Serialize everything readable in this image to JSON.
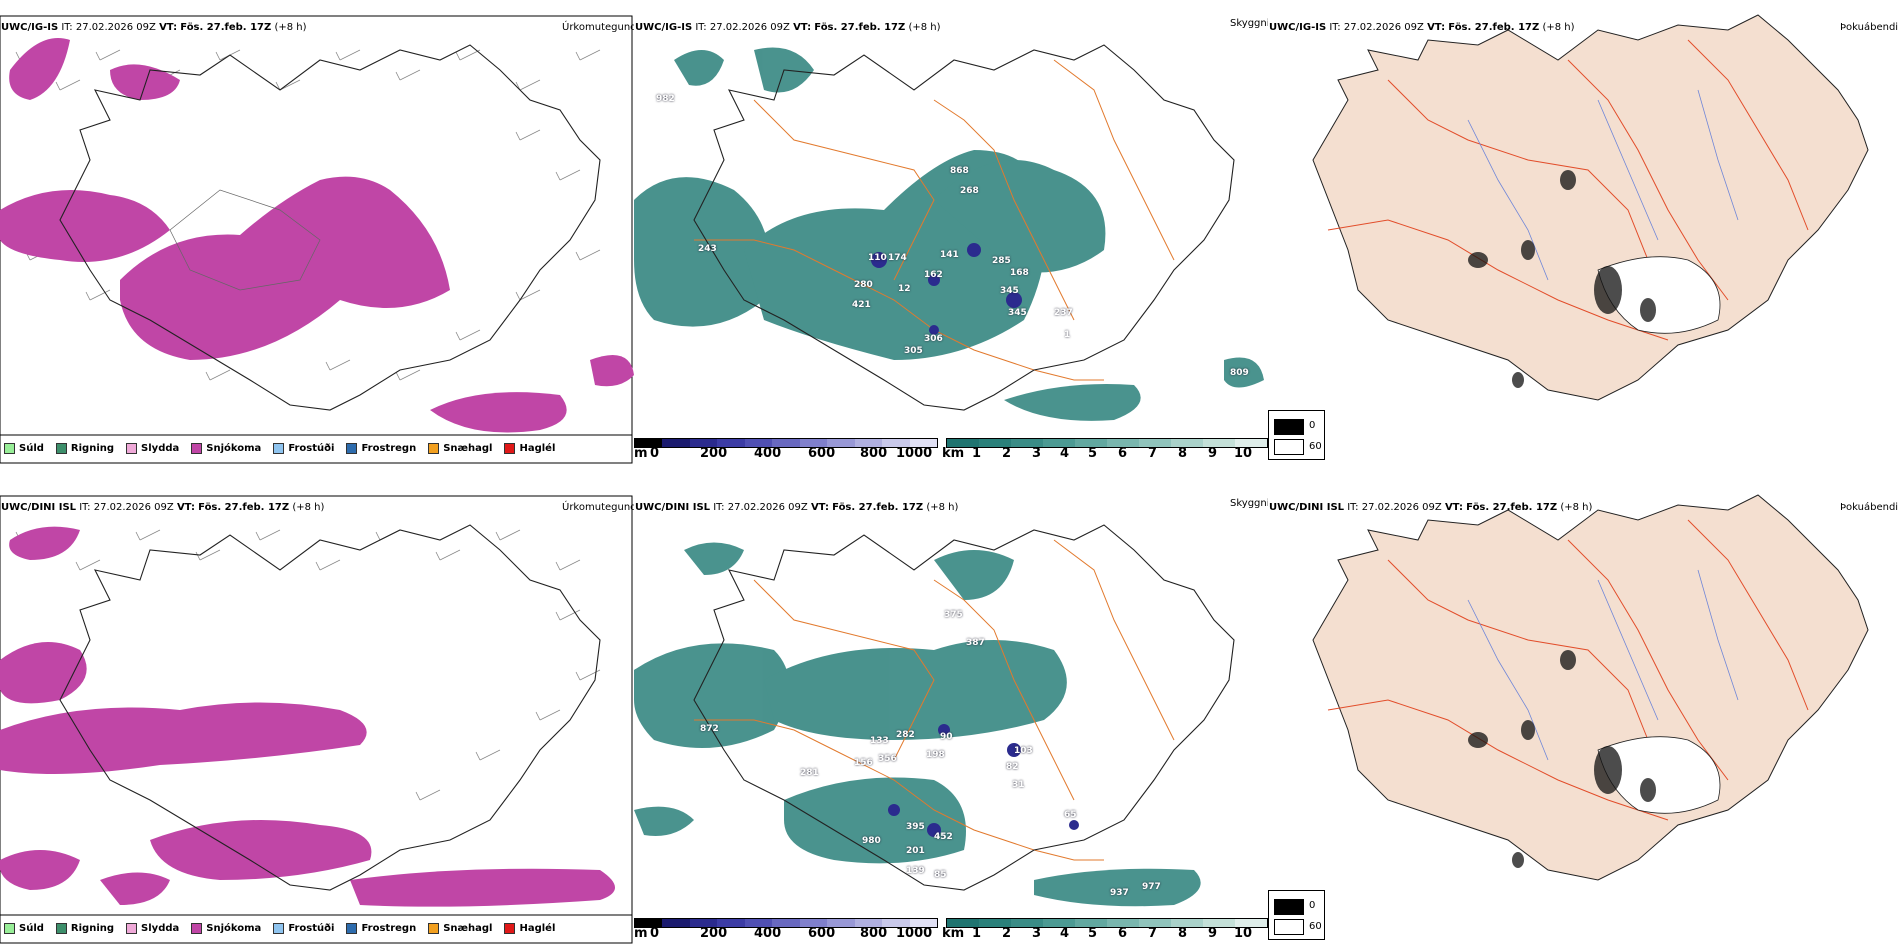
{
  "rows": [
    {
      "model": "UWC/IG-IS",
      "it_label": "IT:",
      "it_value": "27.02.2026 09Z",
      "vt_label": "VT:",
      "vt_value": "Fös. 27.feb. 17Z",
      "lead": "(+8 h)",
      "precip_values": [
        "982",
        "243",
        "110",
        "174",
        "280",
        "421",
        "12",
        "162",
        "141",
        "285",
        "168",
        "345",
        "345",
        "237",
        "1",
        "306",
        "305",
        "868",
        "268",
        "809"
      ],
      "header_full": "UWC/IG-IS IT: 27.02.2026 09Z VT: Fös. 27.feb. 17Z (+8 h)"
    },
    {
      "model": "UWC/DINI ISL",
      "it_label": "IT:",
      "it_value": "27.02.2026 09Z",
      "vt_label": "VT:",
      "vt_value": "Fös. 27.feb. 17Z",
      "lead": "(+8 h)",
      "precip_values": [
        "872",
        "133",
        "282",
        "90",
        "198",
        "156",
        "356",
        "281",
        "103",
        "82",
        "31",
        "65",
        "375",
        "387",
        "395",
        "452",
        "201",
        "980",
        "139",
        "85",
        "977",
        "937"
      ],
      "header_full": "UWC/DINI ISL IT: 27.02.2026 09Z VT: Fös. 27.feb. 17Z (+8 h)"
    }
  ],
  "titles": {
    "precip": "Úrkomutegund",
    "clouds": "Skyggni",
    "fog": "Þokuábendi"
  },
  "precip_legend": [
    {
      "label": "Súld",
      "color": "#98ee98"
    },
    {
      "label": "Rigning",
      "color": "#3d8f6b"
    },
    {
      "label": "Slydda",
      "color": "#efa9d8"
    },
    {
      "label": "Snjókoma",
      "color": "#c046a6"
    },
    {
      "label": "Frostúði",
      "color": "#8fc4ef"
    },
    {
      "label": "Frostregn",
      "color": "#2e6cad"
    },
    {
      "label": "Snæhagl",
      "color": "#f2a020"
    },
    {
      "label": "Haglél",
      "color": "#e01818"
    }
  ],
  "cloud_base_bar": {
    "unit": "m",
    "ticks": [
      "0",
      "200",
      "400",
      "600",
      "800",
      "1000"
    ],
    "colors": [
      "#000000",
      "#1a1a6e",
      "#2b2b8e",
      "#3c3ca5",
      "#5050b4",
      "#6868c0",
      "#8080cc",
      "#9898d6",
      "#b0b0e0",
      "#c8c8ea",
      "#e0e0f4"
    ]
  },
  "visibility_bar": {
    "unit": "km",
    "ticks": [
      "1",
      "2",
      "3",
      "4",
      "5",
      "6",
      "7",
      "8",
      "9",
      "10"
    ],
    "colors": [
      "#1f7470",
      "#2a807a",
      "#3a8c86",
      "#4c9a93",
      "#62a8a0",
      "#79b6ae",
      "#90c4bc",
      "#aad2ca",
      "#c4e0d8",
      "#dfeeea"
    ]
  },
  "fog_legend": {
    "items": [
      {
        "label": "0",
        "color": "#000000"
      },
      {
        "label": "60",
        "color": "#ffffff"
      }
    ]
  },
  "colors": {
    "snow": "#c046a6",
    "vis": "#2a807a",
    "land": "#f4dfd0",
    "roads": "#e27a2e",
    "rivers": "#6f86d8"
  }
}
